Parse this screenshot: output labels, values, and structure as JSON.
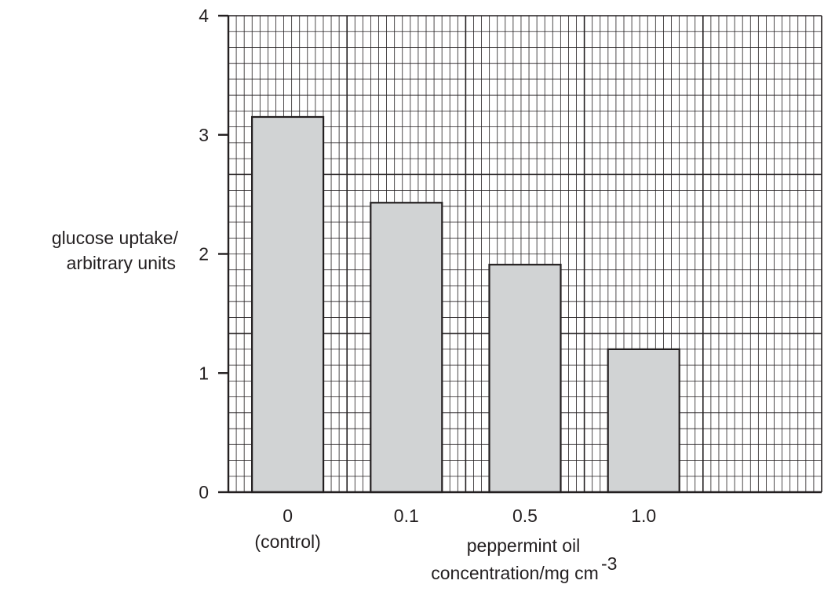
{
  "chart_data": {
    "type": "bar",
    "categories": [
      "0",
      "0.1",
      "0.5",
      "1.0"
    ],
    "category_sublabels": [
      "(control)",
      "",
      "",
      ""
    ],
    "values": [
      3.15,
      2.43,
      1.91,
      1.2
    ],
    "ylim": [
      0,
      4
    ],
    "yticks": [
      "0",
      "1",
      "2",
      "3",
      "4"
    ],
    "ylabel": [
      "glucose uptake/",
      "arbitrary units"
    ],
    "xlabel_line1": "peppermint oil",
    "xlabel_line2": "concentration/mg cm",
    "xlabel_superscript": "-3",
    "grid": true,
    "colors": {
      "bar_fill": "#d1d3d4",
      "bar_stroke": "#231f20",
      "grid": "#231f20",
      "text": "#231f20"
    }
  }
}
